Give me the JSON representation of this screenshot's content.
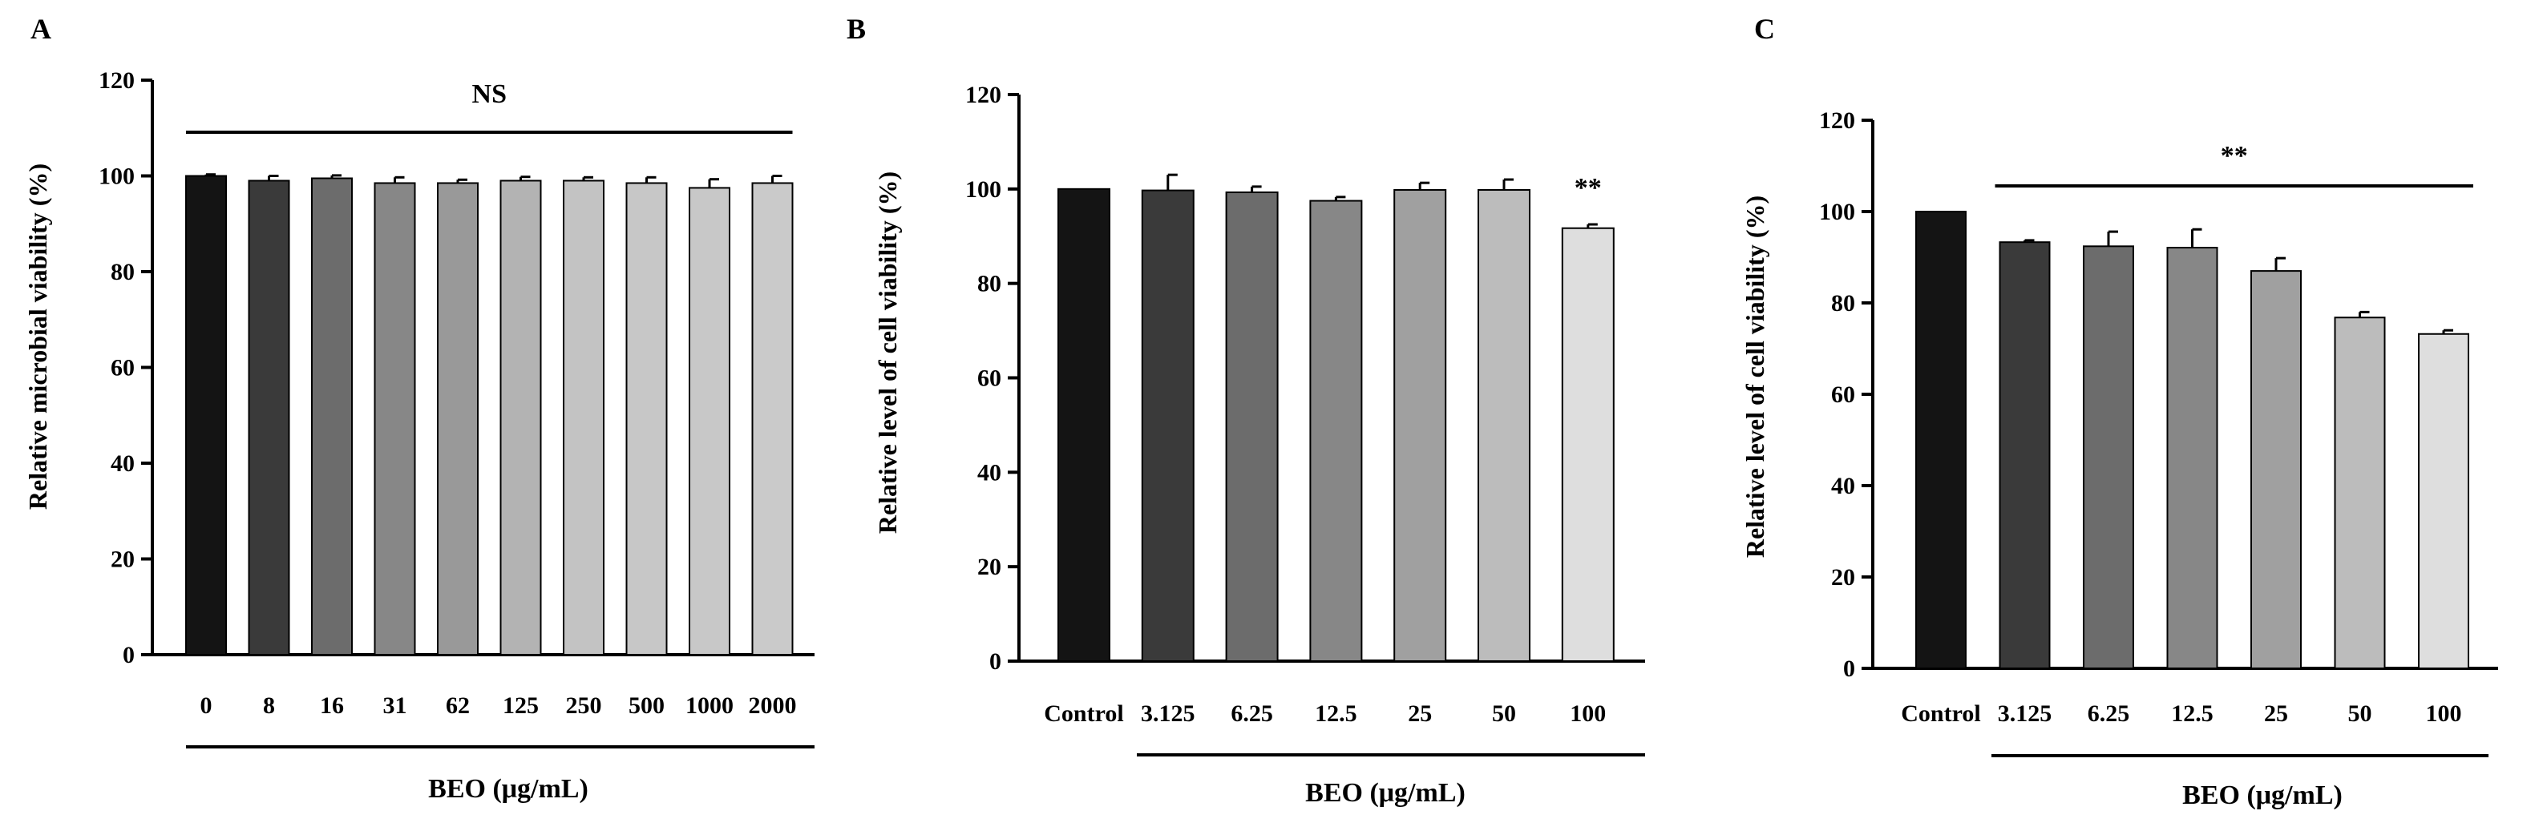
{
  "figure": {
    "background": "#ffffff",
    "axis_color": "#000000",
    "bar_stroke": "#000000"
  },
  "chart_data": [
    {
      "type": "bar",
      "panel": "A",
      "title": "",
      "xlabel": "BEO (μg/mL)",
      "ylabel": "Relative microbial viability (%)",
      "ylim": [
        0,
        120
      ],
      "yticks": [
        0,
        20,
        40,
        60,
        80,
        100,
        120
      ],
      "categories": [
        "0",
        "8",
        "16",
        "31",
        "62",
        "125",
        "250",
        "500",
        "1000",
        "2000"
      ],
      "values": [
        100,
        99,
        99.5,
        98.5,
        98.5,
        99,
        99,
        98.5,
        97.5,
        98.5
      ],
      "errors": [
        0.3,
        1,
        0.6,
        1.2,
        0.7,
        0.8,
        0.7,
        1.2,
        1.8,
        1.5
      ],
      "colors": [
        "#141414",
        "#3a3a3a",
        "#6c6c6c",
        "#878787",
        "#999999",
        "#b3b3b3",
        "#c3c3c3",
        "#c7c7c7",
        "#c8c8c8",
        "#cacaca"
      ],
      "significance": {
        "label": "NS",
        "span": [
          0,
          9
        ]
      },
      "xbar_span": [
        0,
        9
      ],
      "grid": false
    },
    {
      "type": "bar",
      "panel": "B",
      "title": "",
      "xlabel": "BEO (μg/mL)",
      "ylabel": "Relative level of cell viability (%)",
      "ylim": [
        0,
        120
      ],
      "yticks": [
        0,
        20,
        40,
        60,
        80,
        100,
        120
      ],
      "categories": [
        "Control",
        "3.125",
        "6.25",
        "12.5",
        "25",
        "50",
        "100"
      ],
      "values": [
        100,
        99.7,
        99.3,
        97.5,
        99.8,
        99.8,
        91.7
      ],
      "errors": [
        0,
        3.3,
        1.2,
        0.8,
        1.5,
        2.2,
        0.8
      ],
      "colors": [
        "#141414",
        "#3a3a3a",
        "#6c6c6c",
        "#878787",
        "#a0a0a0",
        "#bcbcbc",
        "#dedede"
      ],
      "significance": {
        "label": "**",
        "bar_index": 6
      },
      "xbar_span": [
        1,
        6
      ],
      "grid": false
    },
    {
      "type": "bar",
      "panel": "C",
      "title": "",
      "xlabel": "BEO (μg/mL)",
      "ylabel": "Relative level of cell viability (%)",
      "ylim": [
        0,
        120
      ],
      "yticks": [
        0,
        20,
        40,
        60,
        80,
        100,
        120
      ],
      "categories": [
        "Control",
        "3.125",
        "6.25",
        "12.5",
        "25",
        "50",
        "100"
      ],
      "values": [
        100,
        93.3,
        92.4,
        92.1,
        87.0,
        76.8,
        73.2
      ],
      "errors": [
        0,
        0.4,
        3.2,
        4.0,
        2.8,
        1.2,
        0.8
      ],
      "colors": [
        "#141414",
        "#3a3a3a",
        "#6c6c6c",
        "#878787",
        "#a0a0a0",
        "#bcbcbc",
        "#dedede"
      ],
      "significance": {
        "label": "**",
        "span": [
          1,
          6
        ]
      },
      "xbar_span": [
        1,
        6
      ],
      "grid": false
    }
  ]
}
